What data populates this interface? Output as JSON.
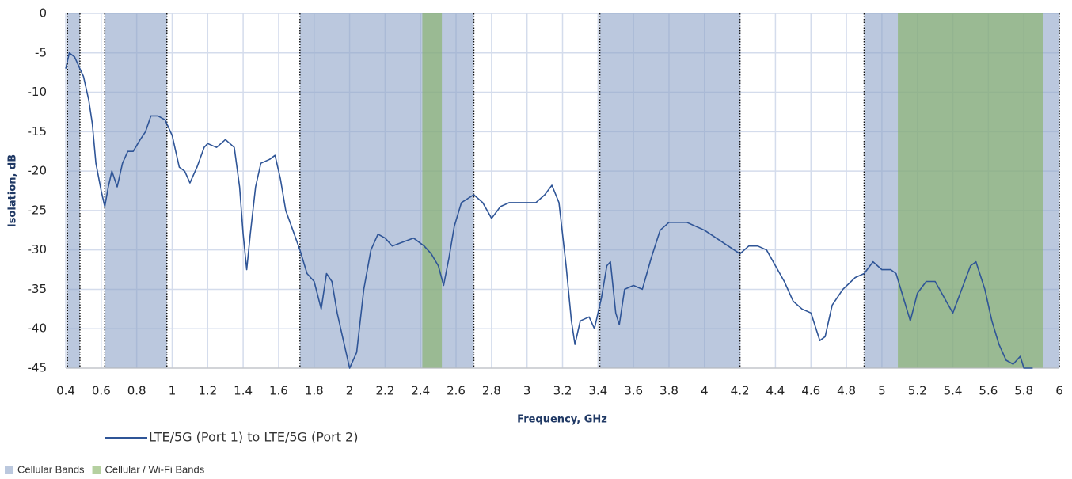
{
  "chart_data": {
    "type": "line",
    "x_label": "Frequency, GHz",
    "y_label": "Isolation, dB",
    "xlim": [
      0.4,
      6
    ],
    "ylim": [
      -45,
      0
    ],
    "xticks": [
      0.4,
      0.6,
      0.8,
      1,
      1.2,
      1.4,
      1.6,
      1.8,
      2,
      2.2,
      2.4,
      2.6,
      2.8,
      3,
      3.2,
      3.4,
      3.6,
      3.8,
      4,
      4.2,
      4.4,
      4.6,
      4.8,
      5,
      5.2,
      5.4,
      5.6,
      5.8,
      6
    ],
    "yticks": [
      0,
      -5,
      -10,
      -15,
      -20,
      -25,
      -30,
      -35,
      -40,
      -45
    ],
    "grid": true,
    "bands": [
      {
        "name": "Cellular Bands",
        "color": "#8ea4c8",
        "border": "dotted",
        "ranges": [
          [
            0.41,
            0.48
          ],
          [
            0.62,
            0.97
          ],
          [
            1.72,
            2.7
          ],
          [
            3.41,
            4.2
          ],
          [
            4.9,
            6
          ]
        ]
      },
      {
        "name": "Cellular / Wi-Fi Bands",
        "color": "#84b060",
        "border": "none",
        "ranges": [
          [
            2.41,
            2.52
          ],
          [
            5.09,
            5.91
          ]
        ]
      }
    ],
    "series": [
      {
        "name": "LTE/5G (Port 1) to LTE/5G (Port 2)",
        "color": "#2f5597",
        "x": [
          0.4,
          0.42,
          0.45,
          0.48,
          0.5,
          0.53,
          0.55,
          0.57,
          0.6,
          0.62,
          0.64,
          0.66,
          0.69,
          0.72,
          0.75,
          0.78,
          0.82,
          0.85,
          0.88,
          0.92,
          0.96,
          1.0,
          1.04,
          1.07,
          1.1,
          1.14,
          1.18,
          1.2,
          1.25,
          1.3,
          1.35,
          1.38,
          1.4,
          1.42,
          1.44,
          1.47,
          1.5,
          1.55,
          1.58,
          1.61,
          1.64,
          1.68,
          1.72,
          1.76,
          1.8,
          1.84,
          1.87,
          1.9,
          1.93,
          1.96,
          1.98,
          2.0,
          2.04,
          2.08,
          2.12,
          2.16,
          2.2,
          2.24,
          2.3,
          2.36,
          2.42,
          2.46,
          2.5,
          2.53,
          2.56,
          2.59,
          2.63,
          2.7,
          2.75,
          2.8,
          2.85,
          2.9,
          3.0,
          3.05,
          3.1,
          3.14,
          3.18,
          3.22,
          3.25,
          3.27,
          3.3,
          3.35,
          3.38,
          3.42,
          3.45,
          3.47,
          3.5,
          3.52,
          3.55,
          3.6,
          3.65,
          3.7,
          3.75,
          3.8,
          3.9,
          4.0,
          4.1,
          4.2,
          4.25,
          4.3,
          4.35,
          4.4,
          4.45,
          4.5,
          4.55,
          4.6,
          4.65,
          4.68,
          4.72,
          4.78,
          4.85,
          4.9,
          4.95,
          5.0,
          5.05,
          5.08,
          5.12,
          5.16,
          5.2,
          5.25,
          5.3,
          5.35,
          5.4,
          5.45,
          5.5,
          5.53,
          5.58,
          5.62,
          5.66,
          5.7,
          5.74,
          5.78,
          5.8,
          5.85
        ],
        "values": [
          -7,
          -5,
          -5.5,
          -7,
          -8,
          -11,
          -14,
          -19,
          -22.5,
          -24.5,
          -22,
          -20,
          -22,
          -19,
          -17.5,
          -17.5,
          -16,
          -15,
          -13,
          -13,
          -13.5,
          -15.5,
          -19.5,
          -20,
          -21.5,
          -19.5,
          -17,
          -16.5,
          -17,
          -16,
          -17,
          -22,
          -28,
          -32.5,
          -28,
          -22,
          -19,
          -18.5,
          -18,
          -21,
          -25,
          -27.5,
          -30,
          -33,
          -34,
          -37.5,
          -33,
          -34,
          -38,
          -41,
          -43,
          -45,
          -43,
          -35,
          -30,
          -28,
          -28.5,
          -29.5,
          -29,
          -28.5,
          -29.5,
          -30.5,
          -32,
          -34.5,
          -31,
          -27,
          -24,
          -23,
          -24,
          -26,
          -24.5,
          -24,
          -24,
          -24,
          -23,
          -21.8,
          -24,
          -32,
          -39,
          -42,
          -39,
          -38.5,
          -40,
          -36,
          -32,
          -31.5,
          -38,
          -39.5,
          -35,
          -34.5,
          -35,
          -31,
          -27.5,
          -26.5,
          -26.5,
          -27.5,
          -29,
          -30.5,
          -29.5,
          -29.5,
          -30,
          -32,
          -34,
          -36.5,
          -37.5,
          -38,
          -41.5,
          -41,
          -37,
          -35,
          -33.5,
          -33,
          -31.5,
          -32.5,
          -32.5,
          -33,
          -36,
          -39,
          -35.5,
          -34,
          -34,
          -36,
          -38,
          -35,
          -32,
          -31.5,
          -35,
          -39,
          -42,
          -44,
          -44.5,
          -43.5,
          -45,
          -45
        ]
      }
    ]
  }
}
